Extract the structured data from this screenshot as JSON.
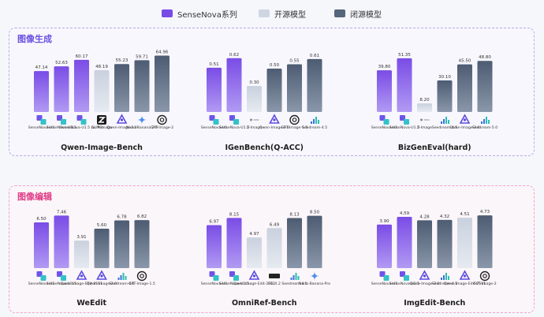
{
  "legend": [
    {
      "label": "SenseNova系列",
      "color": "#7a4ce6"
    },
    {
      "label": "开源模型",
      "color": "#cfd6e2"
    },
    {
      "label": "闭源模型",
      "color": "#56667c"
    }
  ],
  "sections": [
    {
      "title": "图像生成",
      "color": "#6a4fe0"
    },
    {
      "title": "图像编辑",
      "color": "#e03b86"
    }
  ],
  "colors": {
    "sensenova": "#7a4ce6",
    "open": "#cfd6e2",
    "closed": "#56667c"
  },
  "chart_data": [
    {
      "type": "bar",
      "title": "Qwen-Image-Bench",
      "section": 0,
      "categories": [
        "SenseNova-U1",
        "SenseNova-U1.5",
        "SenseNova-U1.5 (w. PE)",
        "GLM-Image",
        "Qwen-Image-2.0",
        "Nano-Banana 2.0",
        "GPT-Image-2"
      ],
      "values": [
        47.14,
        52.63,
        60.17,
        48.19,
        55.23,
        59.71,
        64.96
      ],
      "groups": [
        "sensenova",
        "sensenova",
        "sensenova",
        "open",
        "closed",
        "closed",
        "closed"
      ],
      "icons": [
        "sensenova-icon",
        "sensenova-icon",
        "sensenova-icon",
        "z-logo-icon",
        "qwen-icon",
        "gemini-icon",
        "openai-icon"
      ],
      "ylim": [
        0,
        70
      ]
    },
    {
      "type": "bar",
      "title": "IGenBench(Q-ACC)",
      "section": 0,
      "categories": [
        "SenseNova-U1",
        "SenseNova-U1.5",
        "Z-Image",
        "Qwen-Image-2.0",
        "GPT-Image-1.5",
        "Seedream-4.5"
      ],
      "values": [
        0.51,
        0.62,
        0.3,
        0.5,
        0.55,
        0.61
      ],
      "groups": [
        "sensenova",
        "sensenova",
        "open",
        "closed",
        "closed",
        "closed"
      ],
      "icons": [
        "sensenova-icon",
        "sensenova-icon",
        "z-image-icon",
        "qwen-icon",
        "openai-icon",
        "seedream-icon"
      ],
      "ylim": [
        0,
        0.7
      ]
    },
    {
      "type": "bar",
      "title": "BizGenEval(hard)",
      "section": 0,
      "categories": [
        "SenseNova-U1",
        "SenseNova-U1.5",
        "Z-Image",
        "Seedream-4.5",
        "Qwen-Image-2.0",
        "Seedream-5.0"
      ],
      "values": [
        39.8,
        51.35,
        8.2,
        30.1,
        45.5,
        48.8
      ],
      "groups": [
        "sensenova",
        "sensenova",
        "open",
        "closed",
        "closed",
        "closed"
      ],
      "icons": [
        "sensenova-icon",
        "sensenova-icon",
        "z-image-icon",
        "seedream-icon",
        "qwen-icon",
        "seedream-icon"
      ],
      "ylim": [
        0,
        58
      ]
    },
    {
      "type": "bar",
      "title": "WeEdit",
      "section": 1,
      "categories": [
        "SenseNova-U1",
        "SenseNova-U1.5",
        "Qwen-Image-Edit-2511",
        "Qwen-Image-2.0",
        "Seedream-4.5",
        "GPT-Image-1.5"
      ],
      "values": [
        6.5,
        7.46,
        3.91,
        5.6,
        6.78,
        6.82
      ],
      "groups": [
        "sensenova",
        "sensenova",
        "open",
        "closed",
        "closed",
        "closed"
      ],
      "icons": [
        "sensenova-icon",
        "sensenova-icon",
        "qwen-icon",
        "qwen-icon",
        "seedream-icon",
        "openai-icon"
      ],
      "ylim": [
        0,
        8.4
      ]
    },
    {
      "type": "bar",
      "title": "OmniRef-Bench",
      "section": 1,
      "categories": [
        "SenseNova-U1",
        "SenseNova-U1.5",
        "Qwen-Image-Edit-2511",
        "FLUX.2",
        "Seedream-4.5",
        "Nano-Banana-Pro"
      ],
      "values": [
        6.97,
        8.15,
        4.97,
        6.49,
        8.13,
        8.5
      ],
      "groups": [
        "sensenova",
        "sensenova",
        "open",
        "open",
        "closed",
        "closed"
      ],
      "icons": [
        "sensenova-icon",
        "sensenova-icon",
        "qwen-icon",
        "flux-icon",
        "seedream-icon",
        "gemini-icon"
      ],
      "ylim": [
        0,
        9.6
      ]
    },
    {
      "type": "bar",
      "title": "ImgEdit-Bench",
      "section": 1,
      "categories": [
        "SenseNova-U1",
        "SenseNova-U1.5",
        "Qwen-Image-2.0",
        "Seedream-4.5",
        "Qwen-Image-Edit-2511",
        "GPT-Image-2"
      ],
      "values": [
        3.9,
        4.59,
        4.28,
        4.32,
        4.51,
        4.73
      ],
      "groups": [
        "sensenova",
        "sensenova",
        "closed",
        "closed",
        "open",
        "closed"
      ],
      "icons": [
        "sensenova-icon",
        "sensenova-icon",
        "qwen-icon",
        "seedream-icon",
        "qwen-icon",
        "openai-icon"
      ],
      "ylim": [
        0,
        5.3
      ]
    }
  ]
}
